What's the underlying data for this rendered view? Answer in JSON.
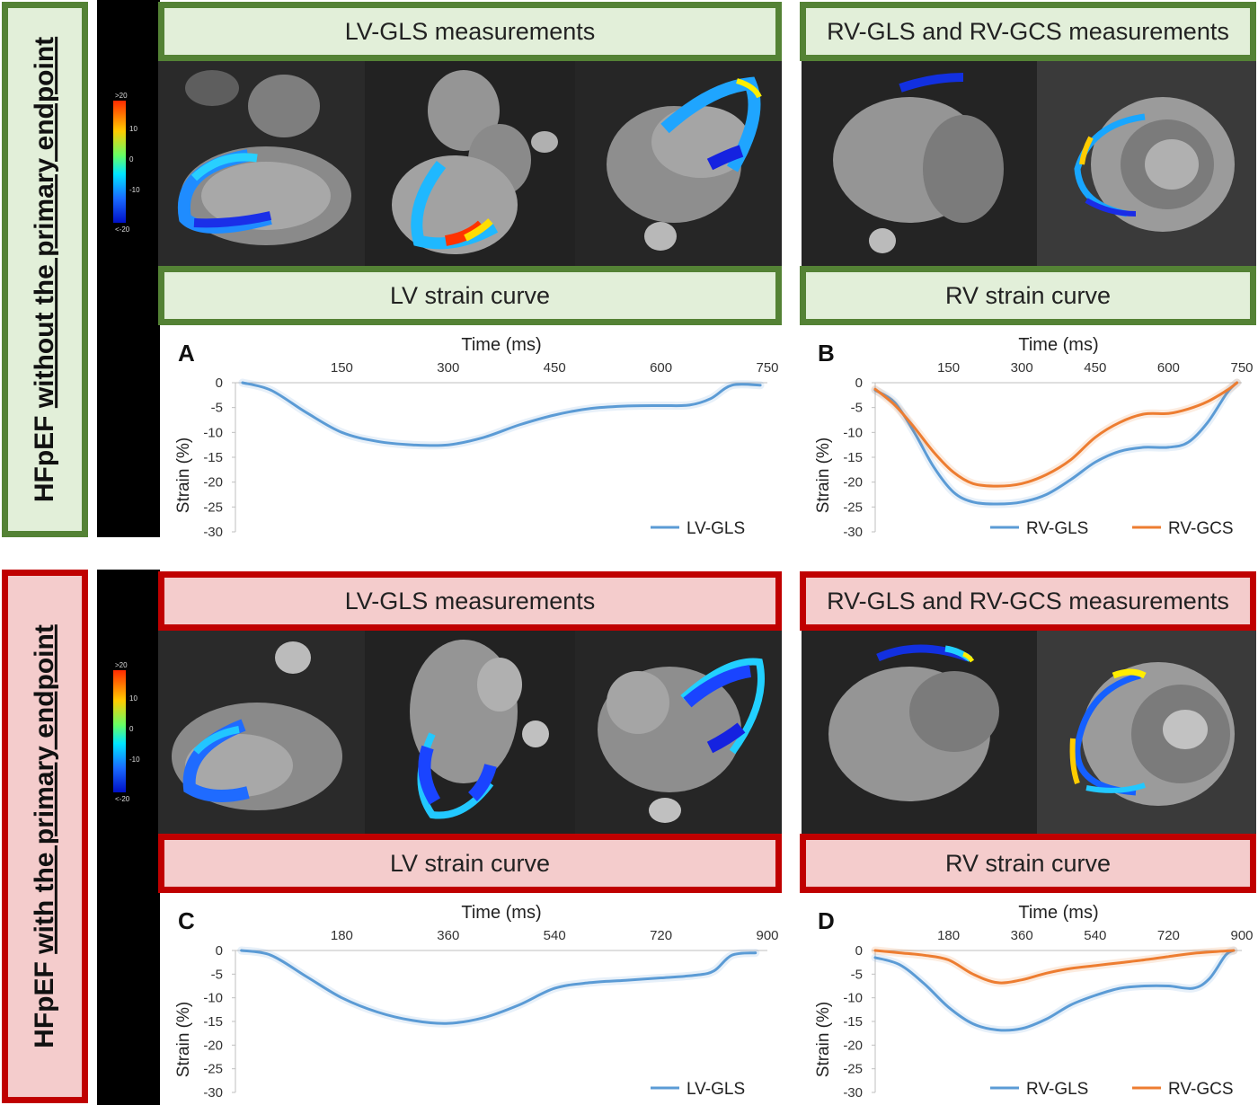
{
  "groups": [
    {
      "label_prefix": "HFpEF ",
      "label_underlined": "without the primary endpoint",
      "lv_header": "LV-GLS measurements",
      "rv_header": "RV-GLS and RV-GCS measurements",
      "lv_curve_header": "LV strain curve",
      "rv_curve_header": "RV strain curve",
      "colorbar": {
        "max_label": ">20",
        "t10": "10",
        "t0": "0",
        "tm10": "-10",
        "min_label": "<-20"
      }
    },
    {
      "label_prefix": "HFpEF ",
      "label_underlined": "with the primary endpoint",
      "lv_header": "LV-GLS measurements",
      "rv_header": "RV-GLS and RV-GCS measurements",
      "lv_curve_header": "LV strain curve",
      "rv_curve_header": "RV strain curve",
      "colorbar": {
        "max_label": ">20",
        "t10": "10",
        "t0": "0",
        "tm10": "-10",
        "min_label": "<-20"
      }
    }
  ],
  "colors": {
    "green_border": "#548235",
    "green_fill": "#e2efd9",
    "red_border": "#c00000",
    "red_fill": "#f4cccc",
    "blue_series": "#5b9bd5",
    "orange_series": "#ed7d31"
  },
  "chart_data": [
    {
      "panel": "A",
      "type": "line",
      "xlabel": "Time (ms)",
      "ylabel": "Strain (%)",
      "xlim": [
        0,
        750
      ],
      "ylim": [
        -30,
        0
      ],
      "xticks": [
        150,
        300,
        450,
        600,
        750
      ],
      "yticks": [
        0,
        -5,
        -10,
        -15,
        -20,
        -25,
        -30
      ],
      "legend_position": "bottom-right",
      "series": [
        {
          "name": "LV-GLS",
          "color": "#5b9bd5",
          "x": [
            10,
            50,
            100,
            150,
            200,
            250,
            300,
            350,
            400,
            450,
            500,
            550,
            600,
            640,
            670,
            700,
            740
          ],
          "y": [
            0,
            -1.5,
            -6,
            -10,
            -11.8,
            -12.5,
            -12.5,
            -11,
            -8.5,
            -6.5,
            -5.2,
            -4.7,
            -4.6,
            -4.5,
            -3.2,
            -0.5,
            -0.5
          ]
        }
      ]
    },
    {
      "panel": "B",
      "type": "line",
      "xlabel": "Time (ms)",
      "ylabel": "Strain (%)",
      "xlim": [
        0,
        750
      ],
      "ylim": [
        -30,
        0
      ],
      "xticks": [
        150,
        300,
        450,
        600,
        750
      ],
      "yticks": [
        0,
        -5,
        -10,
        -15,
        -20,
        -25,
        -30
      ],
      "legend_position": "bottom",
      "series": [
        {
          "name": "RV-GLS",
          "color": "#5b9bd5",
          "x": [
            0,
            40,
            80,
            120,
            160,
            200,
            250,
            300,
            350,
            400,
            450,
            500,
            550,
            600,
            640,
            680,
            720,
            740
          ],
          "y": [
            -1.5,
            -4,
            -10,
            -17,
            -22,
            -24,
            -24.4,
            -24,
            -22.5,
            -19.5,
            -16,
            -13.8,
            -13,
            -13,
            -12,
            -8,
            -2,
            0
          ]
        },
        {
          "name": "RV-GCS",
          "color": "#ed7d31",
          "x": [
            0,
            40,
            80,
            120,
            160,
            200,
            250,
            300,
            350,
            400,
            450,
            500,
            550,
            600,
            640,
            680,
            720,
            740
          ],
          "y": [
            -1.3,
            -4.5,
            -9,
            -14,
            -18,
            -20.3,
            -20.8,
            -20.3,
            -18.5,
            -15.5,
            -11,
            -8,
            -6.3,
            -6.2,
            -5.3,
            -3.8,
            -1.5,
            0
          ]
        }
      ]
    },
    {
      "panel": "C",
      "type": "line",
      "xlabel": "Time (ms)",
      "ylabel": "Strain (%)",
      "xlim": [
        0,
        900
      ],
      "ylim": [
        -30,
        0
      ],
      "xticks": [
        180,
        360,
        540,
        720,
        900
      ],
      "yticks": [
        0,
        -5,
        -10,
        -15,
        -20,
        -25,
        -30
      ],
      "legend_position": "bottom-right",
      "series": [
        {
          "name": "LV-GLS",
          "color": "#5b9bd5",
          "x": [
            10,
            60,
            120,
            180,
            240,
            300,
            360,
            420,
            480,
            540,
            600,
            660,
            720,
            780,
            810,
            840,
            880
          ],
          "y": [
            0,
            -1,
            -5.5,
            -10,
            -13,
            -14.8,
            -15.4,
            -14.2,
            -11.5,
            -8,
            -6.8,
            -6.3,
            -5.8,
            -5.2,
            -4.3,
            -1,
            -0.5
          ]
        }
      ]
    },
    {
      "panel": "D",
      "type": "line",
      "xlabel": "Time (ms)",
      "ylabel": "Strain (%)",
      "xlim": [
        0,
        900
      ],
      "ylim": [
        -30,
        0
      ],
      "xticks": [
        180,
        360,
        540,
        720,
        900
      ],
      "yticks": [
        0,
        -5,
        -10,
        -15,
        -20,
        -25,
        -30
      ],
      "legend_position": "bottom",
      "series": [
        {
          "name": "RV-GLS",
          "color": "#5b9bd5",
          "x": [
            0,
            60,
            120,
            180,
            240,
            300,
            360,
            420,
            480,
            540,
            600,
            660,
            720,
            780,
            820,
            860,
            880
          ],
          "y": [
            -1.5,
            -3,
            -7,
            -12,
            -15.5,
            -16.8,
            -16.5,
            -14.5,
            -11.5,
            -9.5,
            -8,
            -7.5,
            -7.5,
            -8,
            -6,
            -1,
            0
          ]
        },
        {
          "name": "RV-GCS",
          "color": "#ed7d31",
          "x": [
            0,
            60,
            120,
            180,
            240,
            300,
            360,
            420,
            480,
            540,
            600,
            660,
            720,
            780,
            840,
            880
          ],
          "y": [
            0,
            -0.5,
            -1,
            -2,
            -5,
            -6.8,
            -6.2,
            -4.8,
            -3.8,
            -3.2,
            -2.6,
            -2,
            -1.3,
            -0.6,
            -0.2,
            0
          ]
        }
      ]
    }
  ]
}
